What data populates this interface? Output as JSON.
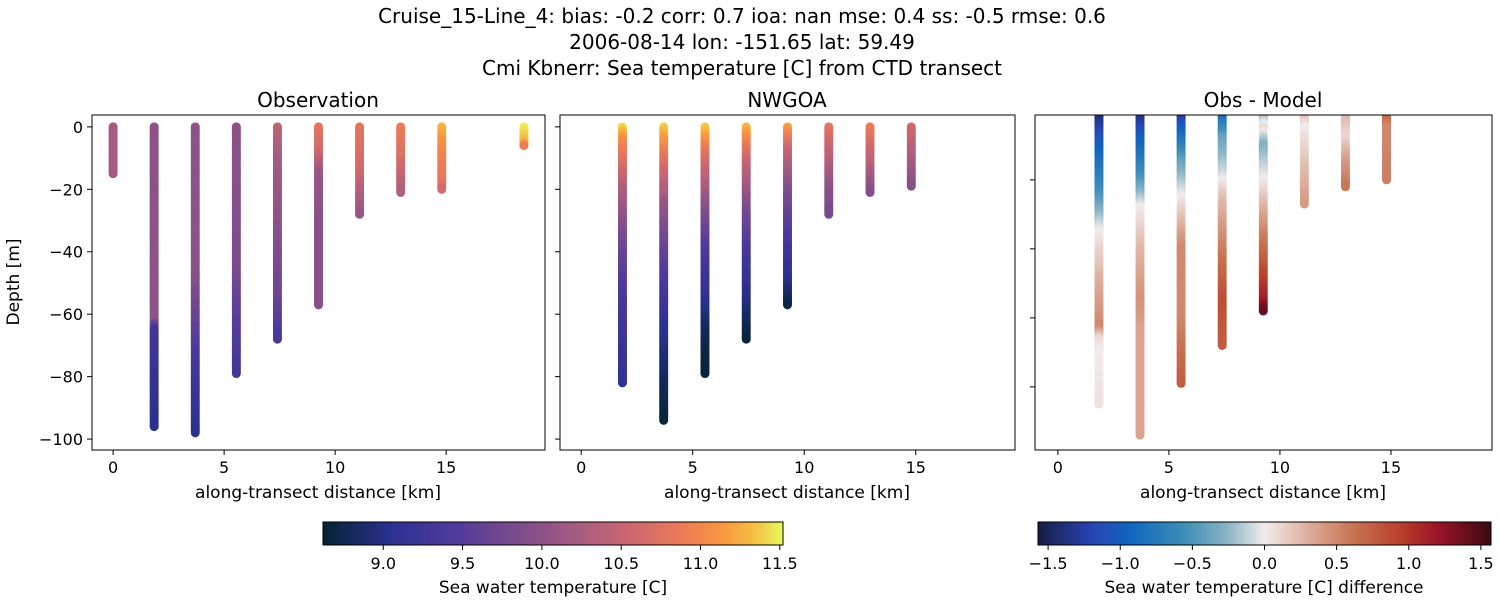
{
  "suptitle": [
    "Cruise_15-Line_4: bias: -0.2  corr: 0.7  ioa: nan  mse: 0.4  ss: -0.5  rmse: 0.6",
    "2006-08-14 lon: -151.65 lat: 59.49",
    "Cmi Kbnerr: Sea temperature [C] from CTD transect"
  ],
  "chart_data": [
    {
      "type": "scatter",
      "title": "Observation",
      "xlabel": "along-transect distance [km]",
      "ylabel": "Depth [m]",
      "xlim": [
        -0.95,
        19.45
      ],
      "ylim": [
        -103.5,
        3.8
      ],
      "xticks": [
        0,
        5,
        10,
        15
      ],
      "yticks": [
        0,
        -20,
        -40,
        -60,
        -80,
        -100
      ],
      "show_ytick_labels": true,
      "colormap": "thermal",
      "vmin": 8.62,
      "vmax": 11.52,
      "profiles": [
        {
          "x": 0,
          "stops": [
            [
              0,
              10.2
            ],
            [
              -15,
              10.2
            ]
          ]
        },
        {
          "x": 1.85,
          "stops": [
            [
              0,
              10.0
            ],
            [
              -62,
              10.0
            ],
            [
              -65,
              9.3
            ],
            [
              -80,
              9.15
            ],
            [
              -96,
              9.05
            ]
          ]
        },
        {
          "x": 3.7,
          "stops": [
            [
              0,
              10.0
            ],
            [
              -45,
              10.0
            ],
            [
              -60,
              9.7
            ],
            [
              -75,
              9.35
            ],
            [
              -98,
              9.05
            ]
          ]
        },
        {
          "x": 5.55,
          "stops": [
            [
              0,
              10.0
            ],
            [
              -45,
              9.85
            ],
            [
              -60,
              9.55
            ],
            [
              -79,
              9.3
            ]
          ]
        },
        {
          "x": 7.4,
          "stops": [
            [
              0,
              10.45
            ],
            [
              -10,
              10.2
            ],
            [
              -30,
              10.0
            ],
            [
              -55,
              9.7
            ],
            [
              -68,
              9.35
            ]
          ]
        },
        {
          "x": 9.25,
          "stops": [
            [
              0,
              10.8
            ],
            [
              -8,
              10.6
            ],
            [
              -15,
              10.1
            ],
            [
              -30,
              9.95
            ],
            [
              -57,
              9.95
            ]
          ]
        },
        {
          "x": 11.1,
          "stops": [
            [
              0,
              10.8
            ],
            [
              -15,
              10.6
            ],
            [
              -22,
              10.3
            ],
            [
              -28,
              10.1
            ]
          ]
        },
        {
          "x": 12.95,
          "stops": [
            [
              0,
              10.9
            ],
            [
              -10,
              10.7
            ],
            [
              -21,
              10.3
            ]
          ]
        },
        {
          "x": 14.8,
          "stops": [
            [
              0,
              11.3
            ],
            [
              -8,
              11.0
            ],
            [
              -18,
              10.8
            ],
            [
              -20,
              10.6
            ]
          ]
        },
        {
          "x": 18.5,
          "stops": [
            [
              0,
              11.5
            ],
            [
              -5,
              11.3
            ],
            [
              -6,
              10.9
            ]
          ]
        }
      ]
    },
    {
      "type": "scatter",
      "title": "NWGOA",
      "xlabel": "along-transect distance [km]",
      "xlim": [
        -0.95,
        19.45
      ],
      "ylim": [
        -103.5,
        3.8
      ],
      "xticks": [
        0,
        5,
        10,
        15
      ],
      "yticks": [
        0,
        -20,
        -40,
        -60,
        -80,
        -100
      ],
      "show_ytick_labels": false,
      "colormap": "thermal",
      "vmin": 8.62,
      "vmax": 11.52,
      "profiles": [
        {
          "x": 1.85,
          "stops": [
            [
              0,
              11.45
            ],
            [
              -5,
              11.0
            ],
            [
              -12,
              10.7
            ],
            [
              -20,
              10.3
            ],
            [
              -35,
              9.8
            ],
            [
              -55,
              9.35
            ],
            [
              -82,
              9.1
            ]
          ]
        },
        {
          "x": 3.7,
          "stops": [
            [
              0,
              11.4
            ],
            [
              -10,
              10.8
            ],
            [
              -25,
              10.1
            ],
            [
              -45,
              9.5
            ],
            [
              -60,
              9.15
            ],
            [
              -75,
              8.9
            ],
            [
              -94,
              8.65
            ]
          ]
        },
        {
          "x": 5.55,
          "stops": [
            [
              0,
              11.4
            ],
            [
              -10,
              10.7
            ],
            [
              -25,
              10.0
            ],
            [
              -40,
              9.4
            ],
            [
              -55,
              9.1
            ],
            [
              -65,
              8.8
            ],
            [
              -79,
              8.65
            ]
          ]
        },
        {
          "x": 7.4,
          "stops": [
            [
              0,
              11.3
            ],
            [
              -10,
              10.6
            ],
            [
              -25,
              9.9
            ],
            [
              -40,
              9.35
            ],
            [
              -55,
              9.0
            ],
            [
              -68,
              8.65
            ]
          ]
        },
        {
          "x": 9.25,
          "stops": [
            [
              0,
              11.2
            ],
            [
              -8,
              10.5
            ],
            [
              -20,
              9.9
            ],
            [
              -35,
              9.4
            ],
            [
              -50,
              9.0
            ],
            [
              -57,
              8.7
            ]
          ]
        },
        {
          "x": 11.1,
          "stops": [
            [
              0,
              10.8
            ],
            [
              -10,
              10.4
            ],
            [
              -20,
              10.0
            ],
            [
              -28,
              9.8
            ]
          ]
        },
        {
          "x": 12.95,
          "stops": [
            [
              0,
              10.9
            ],
            [
              -12,
              10.4
            ],
            [
              -21,
              9.9
            ]
          ]
        },
        {
          "x": 14.8,
          "stops": [
            [
              0,
              10.6
            ],
            [
              -12,
              10.2
            ],
            [
              -19,
              9.95
            ]
          ]
        }
      ]
    },
    {
      "type": "scatter",
      "title": "Obs - Model",
      "xlabel": "along-transect distance [km]",
      "xlim": [
        -1.03,
        19.55
      ],
      "ylim": [
        -98.3,
        -1.2
      ],
      "xticks": [
        0,
        5,
        10,
        15
      ],
      "yticks": [
        -20,
        -40,
        -60,
        -80
      ],
      "show_ytick_labels": false,
      "colormap": "balance",
      "vmin": -1.57,
      "vmax": 1.57,
      "profiles": [
        {
          "x": 1.85,
          "stops": [
            [
              0,
              -1.5
            ],
            [
              -10,
              -1.0
            ],
            [
              -25,
              -0.5
            ],
            [
              -35,
              0.0
            ],
            [
              -50,
              0.3
            ],
            [
              -63,
              0.5
            ],
            [
              -66,
              0.1
            ],
            [
              -70,
              0.0
            ],
            [
              -85,
              0.05
            ]
          ]
        },
        {
          "x": 3.7,
          "stops": [
            [
              0,
              -1.5
            ],
            [
              -8,
              -1.0
            ],
            [
              -20,
              -0.5
            ],
            [
              -28,
              0.0
            ],
            [
              -40,
              0.25
            ],
            [
              -55,
              0.45
            ],
            [
              -65,
              0.35
            ],
            [
              -94,
              0.35
            ]
          ]
        },
        {
          "x": 5.55,
          "stops": [
            [
              0,
              -1.5
            ],
            [
              -5,
              -1.0
            ],
            [
              -15,
              -0.4
            ],
            [
              -25,
              0.0
            ],
            [
              -40,
              0.5
            ],
            [
              -60,
              0.5
            ],
            [
              -79,
              0.75
            ]
          ]
        },
        {
          "x": 7.4,
          "stops": [
            [
              0,
              -1.0
            ],
            [
              -8,
              -0.4
            ],
            [
              -18,
              -0.1
            ],
            [
              -25,
              0.2
            ],
            [
              -40,
              0.55
            ],
            [
              -55,
              0.85
            ],
            [
              -68,
              0.75
            ]
          ]
        },
        {
          "x": 9.25,
          "stops": [
            [
              0,
              -0.4
            ],
            [
              -5,
              0.1
            ],
            [
              -10,
              -0.3
            ],
            [
              -20,
              0.0
            ],
            [
              -35,
              0.5
            ],
            [
              -45,
              0.8
            ],
            [
              -55,
              1.15
            ],
            [
              -58,
              1.4
            ]
          ]
        },
        {
          "x": 11.1,
          "stops": [
            [
              -2,
              0.2
            ],
            [
              -5,
              0.0
            ],
            [
              -10,
              0.1
            ],
            [
              -27,
              0.4
            ]
          ]
        },
        {
          "x": 12.95,
          "stops": [
            [
              0,
              0.3
            ],
            [
              -8,
              0.1
            ],
            [
              -15,
              0.4
            ],
            [
              -22,
              0.6
            ]
          ]
        },
        {
          "x": 14.8,
          "stops": [
            [
              0,
              0.8
            ],
            [
              -5,
              0.5
            ],
            [
              -20,
              0.55
            ]
          ]
        }
      ]
    }
  ],
  "colorbars": [
    {
      "label": "Sea water temperature [C]",
      "colormap": "thermal",
      "vmin": 8.62,
      "vmax": 11.52,
      "ticks": [
        "9.0",
        "9.5",
        "10.0",
        "10.5",
        "11.0",
        "11.5"
      ]
    },
    {
      "label": "Sea water temperature [C] difference",
      "colormap": "balance",
      "vmin": -1.57,
      "vmax": 1.57,
      "ticks": [
        "−1.5",
        "−1.0",
        "−0.5",
        "0.0",
        "0.5",
        "1.0",
        "1.5"
      ]
    }
  ],
  "colormaps": {
    "thermal": [
      [
        0,
        "#042333"
      ],
      [
        0.15,
        "#2c3192"
      ],
      [
        0.28,
        "#4e3a9c"
      ],
      [
        0.42,
        "#7b4b8e"
      ],
      [
        0.55,
        "#a65c80"
      ],
      [
        0.67,
        "#cd6770"
      ],
      [
        0.78,
        "#ec7b58"
      ],
      [
        0.87,
        "#f9973f"
      ],
      [
        0.94,
        "#f5c043"
      ],
      [
        1,
        "#e8fa5b"
      ]
    ],
    "balance": [
      [
        0,
        "#181c43"
      ],
      [
        0.12,
        "#2845b5"
      ],
      [
        0.2,
        "#0f64be"
      ],
      [
        0.32,
        "#3b8db8"
      ],
      [
        0.42,
        "#8cb5c5"
      ],
      [
        0.5,
        "#f1ecec"
      ],
      [
        0.6,
        "#dcab9a"
      ],
      [
        0.7,
        "#c7714f"
      ],
      [
        0.8,
        "#b8402a"
      ],
      [
        0.88,
        "#9c1529"
      ],
      [
        1,
        "#3c0912"
      ]
    ]
  }
}
